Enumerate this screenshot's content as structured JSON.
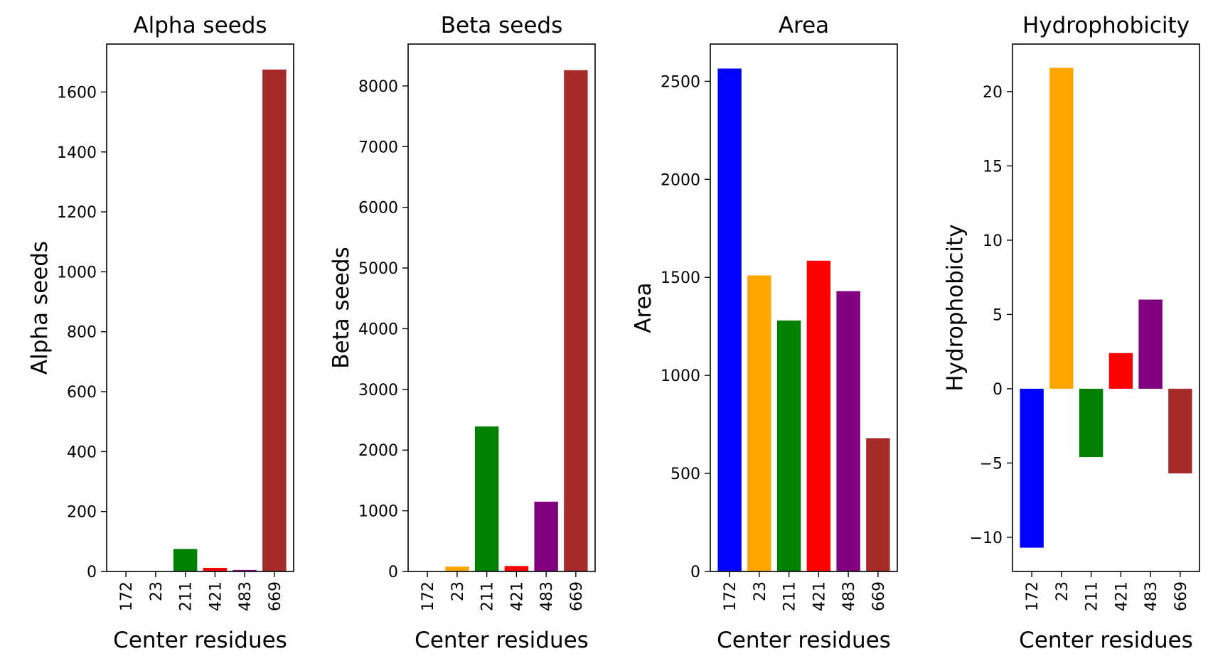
{
  "chart_data": [
    {
      "type": "bar",
      "title": "Alpha seeds",
      "xlabel": "Center residues",
      "ylabel": "Alpha seeds",
      "categories": [
        "172",
        "23",
        "211",
        "421",
        "483",
        "669"
      ],
      "values": [
        0,
        0,
        75,
        12,
        5,
        1675
      ],
      "colors": [
        "#0000ff",
        "#ffa500",
        "#008000",
        "#ff0000",
        "#800080",
        "#a52a2a"
      ],
      "ylim": [
        0,
        1760
      ],
      "yticks": [
        0,
        200,
        400,
        600,
        800,
        1000,
        1200,
        1400,
        1600
      ],
      "ytick_labels": [
        "0",
        "200",
        "400",
        "600",
        "800",
        "1000",
        "1200",
        "1400",
        "1600"
      ]
    },
    {
      "type": "bar",
      "title": "Beta seeds",
      "xlabel": "Center residues",
      "ylabel": "Beta seeds",
      "categories": [
        "172",
        "23",
        "211",
        "421",
        "483",
        "669"
      ],
      "values": [
        0,
        80,
        2390,
        90,
        1150,
        8260
      ],
      "colors": [
        "#0000ff",
        "#ffa500",
        "#008000",
        "#ff0000",
        "#800080",
        "#a52a2a"
      ],
      "ylim": [
        0,
        8690
      ],
      "yticks": [
        0,
        1000,
        2000,
        3000,
        4000,
        5000,
        6000,
        7000,
        8000
      ],
      "ytick_labels": [
        "0",
        "1000",
        "2000",
        "3000",
        "4000",
        "5000",
        "6000",
        "7000",
        "8000"
      ]
    },
    {
      "type": "bar",
      "title": "Area",
      "xlabel": "Center residues",
      "ylabel": "Area",
      "categories": [
        "172",
        "23",
        "211",
        "421",
        "483",
        "669"
      ],
      "values": [
        2565,
        1510,
        1280,
        1585,
        1430,
        680
      ],
      "colors": [
        "#0000ff",
        "#ffa500",
        "#008000",
        "#ff0000",
        "#800080",
        "#a52a2a"
      ],
      "ylim": [
        0,
        2690
      ],
      "yticks": [
        0,
        500,
        1000,
        1500,
        2000,
        2500
      ],
      "ytick_labels": [
        "0",
        "500",
        "1000",
        "1500",
        "2000",
        "2500"
      ]
    },
    {
      "type": "bar",
      "title": "Hydrophobicity",
      "xlabel": "Center residues",
      "ylabel": "Hydrophobicity",
      "categories": [
        "172",
        "23",
        "211",
        "421",
        "483",
        "669"
      ],
      "values": [
        -10.7,
        21.6,
        -4.6,
        2.4,
        6.0,
        -5.7
      ],
      "colors": [
        "#0000ff",
        "#ffa500",
        "#008000",
        "#ff0000",
        "#800080",
        "#a52a2a"
      ],
      "ylim": [
        -12.3,
        23.2
      ],
      "yticks": [
        -10,
        -5,
        0,
        5,
        10,
        15,
        20
      ],
      "ytick_labels": [
        "−10",
        "−5",
        "0",
        "5",
        "10",
        "15",
        "20"
      ]
    }
  ]
}
